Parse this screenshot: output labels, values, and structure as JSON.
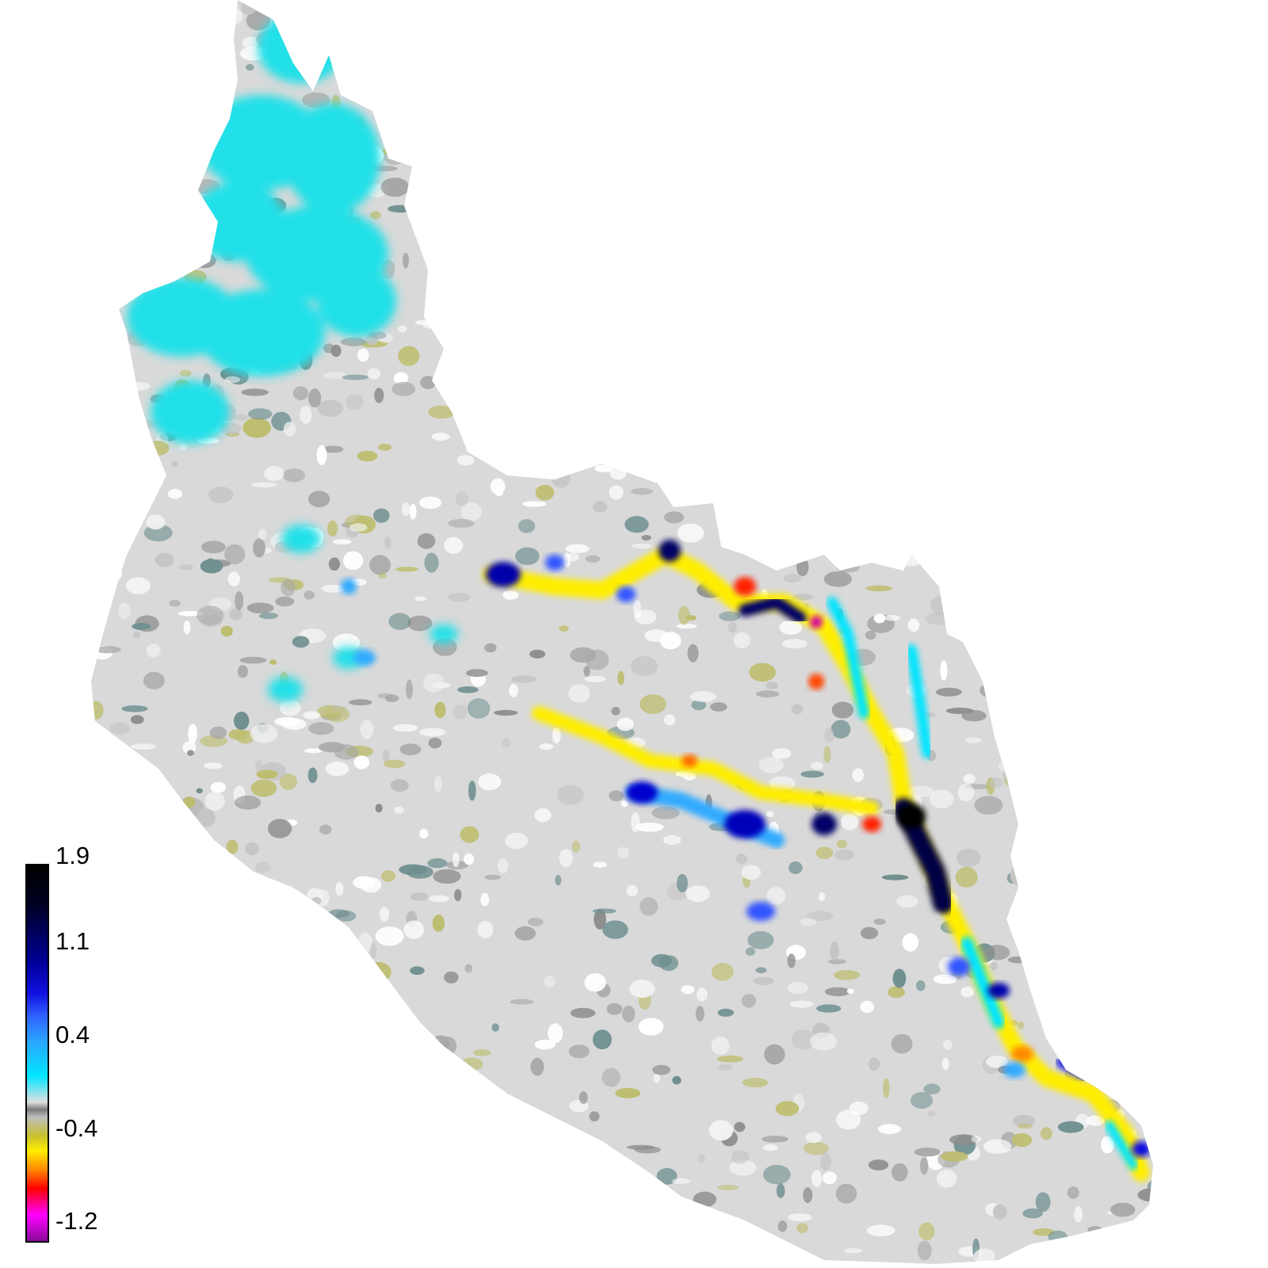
{
  "legend": {
    "ticks": [
      "1.9",
      "1.1",
      "0.4",
      "-0.4",
      "-1.2"
    ],
    "colors": {
      "max": "#000000",
      "high": "#0a0ad6",
      "mid_high": "#00e5ff",
      "neutral": "#9e9e9e",
      "mid_low": "#ffee00",
      "low": "#ff0000",
      "min": "#9b009b"
    }
  },
  "map": {
    "background_color": "#ffffff",
    "base_fill": "#d9d9d9"
  }
}
